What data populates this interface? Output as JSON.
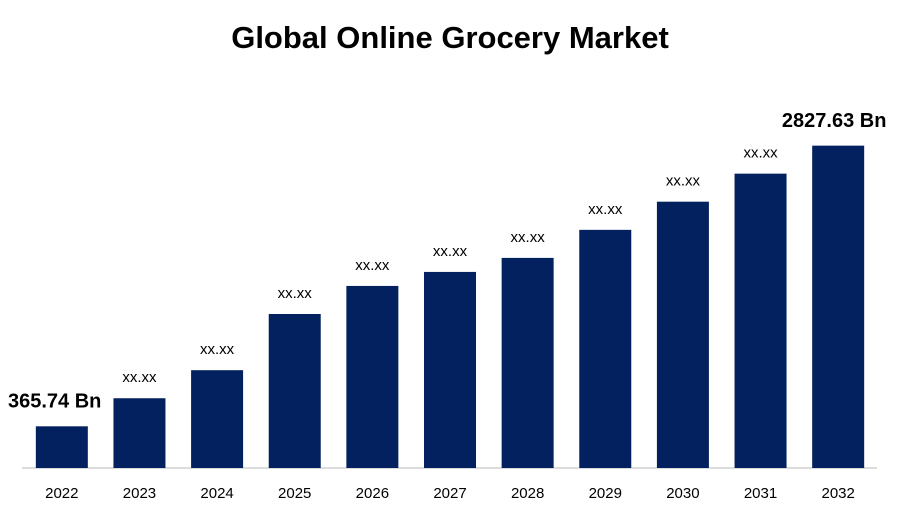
{
  "chart_data": {
    "type": "bar",
    "title": "Global Online Grocery Market",
    "categories": [
      "2022",
      "2023",
      "2024",
      "2025",
      "2026",
      "2027",
      "2028",
      "2029",
      "2030",
      "2031",
      "2032"
    ],
    "values": [
      365.74,
      612,
      858,
      1351,
      1597,
      1720,
      1843,
      2089,
      2336,
      2582,
      2827.63
    ],
    "value_labels": [
      "365.74 Bn",
      "xx.xx",
      "xx.xx",
      "xx.xx",
      "xx.xx",
      "xx.xx",
      "xx.xx",
      "xx.xx",
      "xx.xx",
      "xx.xx",
      "2827.63 Bn"
    ],
    "color": "#03215f",
    "ylim": [
      0,
      3000
    ]
  }
}
